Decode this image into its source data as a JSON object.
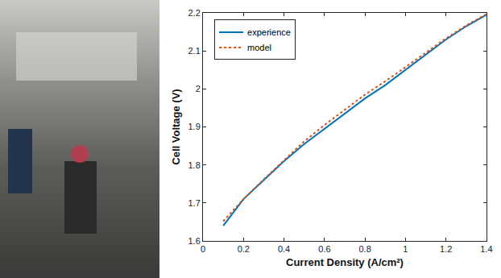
{
  "chart_data": {
    "type": "line",
    "x_label": "Current Density (A/cm²)",
    "y_label": "Cell Voltage (V)",
    "x": [
      0.1,
      0.2,
      0.3,
      0.4,
      0.5,
      0.6,
      0.7,
      0.8,
      0.9,
      1.0,
      1.1,
      1.2,
      1.3,
      1.4
    ],
    "series": [
      {
        "name": "experience",
        "color": "#0072BD",
        "line_style": "solid",
        "values": [
          1.64,
          1.71,
          1.76,
          1.81,
          1.855,
          1.895,
          1.935,
          1.975,
          2.01,
          2.05,
          2.09,
          2.13,
          2.165,
          2.195
        ]
      },
      {
        "name": "model",
        "color": "#D95319",
        "line_style": "dotted",
        "values": [
          1.652,
          1.71,
          1.762,
          1.813,
          1.862,
          1.905,
          1.945,
          1.985,
          2.02,
          2.057,
          2.095,
          2.133,
          2.167,
          2.197
        ]
      }
    ],
    "xlim": [
      0,
      1.4
    ],
    "xticks": [
      0,
      0.2,
      0.4,
      0.6,
      0.8,
      1,
      1.2,
      1.4
    ],
    "ylim": [
      1.6,
      2.2
    ],
    "yticks": [
      1.6,
      1.7,
      1.8,
      1.9,
      2,
      2.1,
      2.2
    ],
    "grid": false,
    "legend": "upper left"
  }
}
